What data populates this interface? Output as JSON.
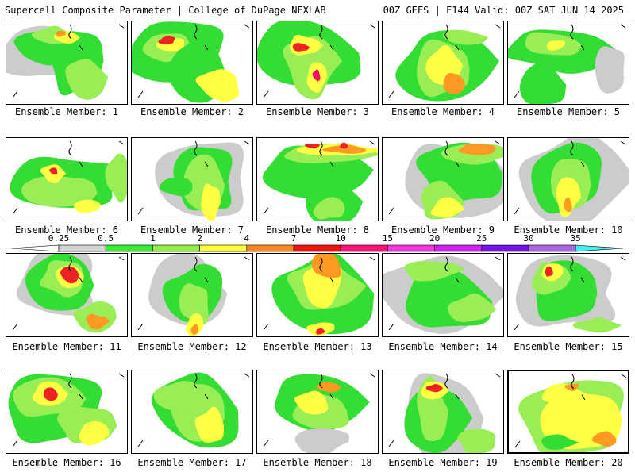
{
  "header": {
    "left": "Supercell Composite Parameter | College of DuPage NEXLAB",
    "right": "00Z GEFS | F144 Valid: 00Z SAT JUN 14 2025"
  },
  "colorbar": {
    "labels": [
      "0.25",
      "0.5",
      "1",
      "2",
      "4",
      "7",
      "10",
      "15",
      "20",
      "25",
      "30",
      "35"
    ],
    "colors": [
      "#d3d3d3",
      "#33ee33",
      "#90ee44",
      "#ffff33",
      "#ff8c1a",
      "#ee1111",
      "#ff1177",
      "#ff33dd",
      "#cc22ee",
      "#7711ee",
      "#aa66dd",
      "#44eeee"
    ]
  },
  "panels": [
    {
      "label": "Ensemble Member: 1"
    },
    {
      "label": "Ensemble Member: 2"
    },
    {
      "label": "Ensemble Member: 3"
    },
    {
      "label": "Ensemble Member: 4"
    },
    {
      "label": "Ensemble Member: 5"
    },
    {
      "label": "Ensemble Member: 6"
    },
    {
      "label": "Ensemble Member: 7"
    },
    {
      "label": "Ensemble Member: 8"
    },
    {
      "label": "Ensemble Member: 9"
    },
    {
      "label": "Ensemble Member: 10"
    },
    {
      "label": "Ensemble Member: 11"
    },
    {
      "label": "Ensemble Member: 12"
    },
    {
      "label": "Ensemble Member: 13"
    },
    {
      "label": "Ensemble Member: 14"
    },
    {
      "label": "Ensemble Member: 15"
    },
    {
      "label": "Ensemble Member: 16"
    },
    {
      "label": "Ensemble Member: 17"
    },
    {
      "label": "Ensemble Member: 18"
    },
    {
      "label": "Ensemble Member: 19"
    },
    {
      "label": "Ensemble Member: 20"
    }
  ]
}
